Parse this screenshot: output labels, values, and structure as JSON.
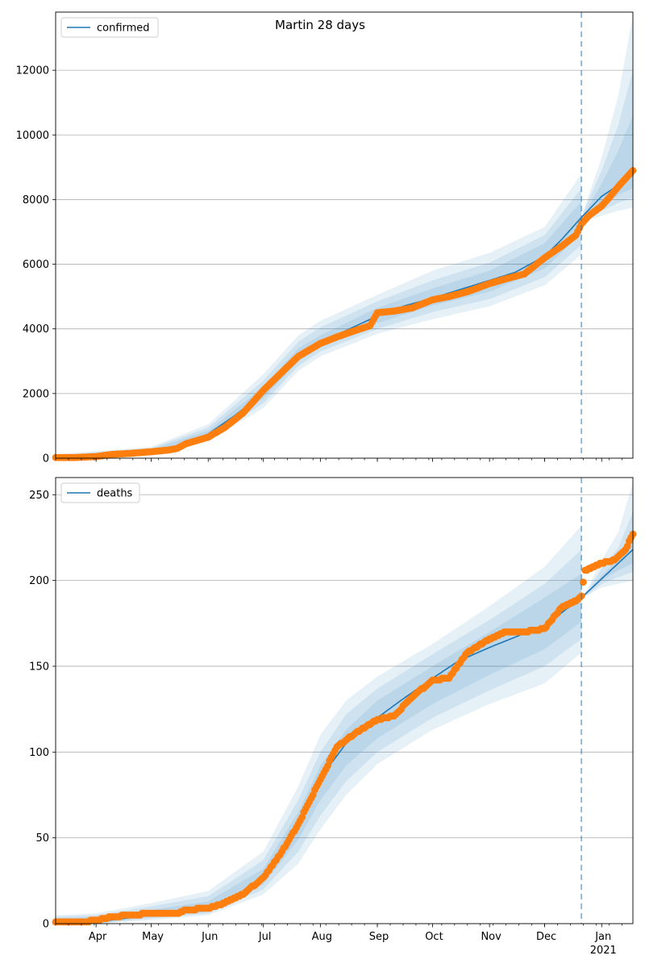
{
  "title": "Martin 28 days",
  "colors": {
    "model": "#1f77b4",
    "observed": "#ff7f0e",
    "band": "#1f77b4",
    "forecast_marker": "#1f77b4",
    "grid": "#b0b0b0"
  },
  "x_axis": {
    "date_range": [
      "2020-03-10",
      "2021-01-18"
    ],
    "month_ticks": [
      {
        "date": "2020-04-01",
        "label": "Apr"
      },
      {
        "date": "2020-05-01",
        "label": "May"
      },
      {
        "date": "2020-06-01",
        "label": "Jun"
      },
      {
        "date": "2020-07-01",
        "label": "Jul"
      },
      {
        "date": "2020-08-01",
        "label": "Aug"
      },
      {
        "date": "2020-09-01",
        "label": "Sep"
      },
      {
        "date": "2020-10-01",
        "label": "Oct"
      },
      {
        "date": "2020-11-01",
        "label": "Nov"
      },
      {
        "date": "2020-12-01",
        "label": "Dec"
      },
      {
        "date": "2021-01-01",
        "label": "Jan"
      }
    ],
    "year_label": "2021",
    "forecast_start": "2020-12-21"
  },
  "chart_data": [
    {
      "type": "line",
      "legend": "confirmed",
      "legend_position": "upper-left",
      "grid": "y",
      "ylim": [
        0,
        13800
      ],
      "yticks": [
        0,
        2000,
        4000,
        6000,
        8000,
        10000,
        12000
      ],
      "model_line": {
        "x": [
          "2020-03-10",
          "2020-04-01",
          "2020-05-01",
          "2020-05-20",
          "2020-06-01",
          "2020-06-15",
          "2020-07-01",
          "2020-07-10",
          "2020-07-20",
          "2020-08-01",
          "2020-08-15",
          "2020-09-01",
          "2020-09-15",
          "2020-10-01",
          "2020-10-15",
          "2020-11-01",
          "2020-11-15",
          "2020-12-01",
          "2020-12-10",
          "2020-12-21",
          "2021-01-01",
          "2021-01-18"
        ],
        "y": [
          0,
          60,
          220,
          400,
          750,
          1300,
          2000,
          2700,
          3200,
          3600,
          3950,
          4400,
          4700,
          4950,
          5200,
          5500,
          5750,
          6250,
          6750,
          7450,
          8100,
          8750
        ]
      },
      "bands": [
        {
          "level": "outer",
          "x": [
            "2020-03-10",
            "2020-05-01",
            "2020-06-01",
            "2020-07-01",
            "2020-07-20",
            "2020-08-01",
            "2020-09-01",
            "2020-10-01",
            "2020-11-01",
            "2020-12-01",
            "2020-12-21",
            "2020-12-22",
            "2021-01-01",
            "2021-01-10",
            "2021-01-18"
          ],
          "low": [
            0,
            150,
            550,
            1550,
            2700,
            3150,
            3850,
            4300,
            4700,
            5350,
            6300,
            7300,
            7500,
            7650,
            7750
          ],
          "high": [
            120,
            350,
            1050,
            2600,
            3800,
            4250,
            5050,
            5800,
            6350,
            7150,
            8800,
            7650,
            9300,
            11200,
            13700
          ]
        },
        {
          "level": "middle",
          "x": [
            "2020-03-10",
            "2020-05-01",
            "2020-06-01",
            "2020-07-01",
            "2020-07-20",
            "2020-08-01",
            "2020-09-01",
            "2020-10-01",
            "2020-11-01",
            "2020-12-01",
            "2020-12-21",
            "2020-12-22",
            "2021-01-01",
            "2021-01-10",
            "2021-01-18"
          ],
          "low": [
            0,
            170,
            610,
            1700,
            2850,
            3300,
            4000,
            4520,
            4920,
            5600,
            6600,
            7350,
            7650,
            7900,
            8050
          ],
          "high": [
            90,
            310,
            950,
            2400,
            3600,
            4050,
            4850,
            5500,
            6050,
            6900,
            8350,
            7600,
            8900,
            10300,
            12000
          ]
        },
        {
          "level": "inner",
          "x": [
            "2020-03-10",
            "2020-05-01",
            "2020-06-01",
            "2020-07-01",
            "2020-07-20",
            "2020-08-01",
            "2020-09-01",
            "2020-10-01",
            "2020-11-01",
            "2020-12-01",
            "2020-12-21",
            "2020-12-22",
            "2021-01-01",
            "2021-01-10",
            "2021-01-18"
          ],
          "low": [
            0,
            190,
            670,
            1850,
            3000,
            3450,
            4180,
            4720,
            5150,
            5870,
            6950,
            7400,
            7800,
            8150,
            8350
          ],
          "high": [
            60,
            270,
            850,
            2200,
            3400,
            3800,
            4650,
            5250,
            5800,
            6650,
            7950,
            7500,
            8500,
            9500,
            10600
          ]
        }
      ],
      "observed": {
        "x": [
          "2020-03-10",
          "2020-03-20",
          "2020-04-01",
          "2020-04-10",
          "2020-04-20",
          "2020-05-01",
          "2020-05-10",
          "2020-05-15",
          "2020-05-20",
          "2020-06-01",
          "2020-06-10",
          "2020-06-20",
          "2020-07-01",
          "2020-07-10",
          "2020-07-20",
          "2020-08-01",
          "2020-08-10",
          "2020-08-20",
          "2020-08-28",
          "2020-09-01",
          "2020-09-10",
          "2020-09-20",
          "2020-10-01",
          "2020-10-10",
          "2020-10-20",
          "2020-11-01",
          "2020-11-10",
          "2020-11-20",
          "2020-12-01",
          "2020-12-10",
          "2020-12-18",
          "2020-12-21",
          "2020-12-25",
          "2021-01-01",
          "2021-01-05",
          "2021-01-10",
          "2021-01-14",
          "2021-01-18"
        ],
        "y": [
          20,
          20,
          50,
          120,
          150,
          200,
          250,
          300,
          450,
          650,
          950,
          1400,
          2100,
          2600,
          3150,
          3550,
          3750,
          3950,
          4100,
          4500,
          4550,
          4650,
          4900,
          5000,
          5150,
          5400,
          5550,
          5700,
          6200,
          6550,
          6900,
          7250,
          7500,
          7800,
          8050,
          8400,
          8650,
          8900
        ]
      }
    },
    {
      "type": "line",
      "legend": "deaths",
      "legend_position": "upper-left",
      "grid": "y",
      "ylim": [
        0,
        260
      ],
      "yticks": [
        0,
        50,
        100,
        150,
        200,
        250
      ],
      "model_line": {
        "x": [
          "2020-03-10",
          "2020-04-01",
          "2020-05-01",
          "2020-05-20",
          "2020-06-01",
          "2020-06-15",
          "2020-07-01",
          "2020-07-10",
          "2020-07-20",
          "2020-08-01",
          "2020-08-15",
          "2020-09-01",
          "2020-09-15",
          "2020-10-01",
          "2020-10-15",
          "2020-11-01",
          "2020-11-15",
          "2020-12-01",
          "2020-12-10",
          "2020-12-21",
          "2021-01-01",
          "2021-01-10",
          "2021-01-18"
        ],
        "y": [
          0,
          1,
          5,
          7,
          9,
          14,
          28,
          40,
          60,
          85,
          105,
          120,
          131,
          143,
          153,
          161,
          167,
          174,
          181,
          190,
          201,
          210,
          218
        ]
      },
      "bands": [
        {
          "level": "outer",
          "x": [
            "2020-03-10",
            "2020-04-01",
            "2020-05-01",
            "2020-06-01",
            "2020-07-01",
            "2020-07-20",
            "2020-08-01",
            "2020-08-15",
            "2020-09-01",
            "2020-10-01",
            "2020-11-01",
            "2020-12-01",
            "2020-12-21",
            "2020-12-22",
            "2021-01-01",
            "2021-01-10",
            "2021-01-18"
          ],
          "low": [
            0,
            0,
            2,
            5,
            17,
            35,
            55,
            75,
            93,
            113,
            128,
            140,
            158,
            190,
            196,
            198,
            200
          ],
          "high": [
            5,
            6,
            12,
            19,
            42,
            80,
            110,
            130,
            144,
            163,
            185,
            208,
            232,
            190,
            212,
            228,
            257
          ]
        },
        {
          "level": "middle",
          "x": [
            "2020-03-10",
            "2020-04-01",
            "2020-05-01",
            "2020-06-01",
            "2020-07-01",
            "2020-07-20",
            "2020-08-01",
            "2020-08-15",
            "2020-09-01",
            "2020-10-01",
            "2020-11-01",
            "2020-12-01",
            "2020-12-21",
            "2020-12-22",
            "2021-01-01",
            "2021-01-10",
            "2021-01-18"
          ],
          "low": [
            0,
            0,
            3,
            6,
            20,
            42,
            63,
            83,
            100,
            120,
            136,
            150,
            166,
            190,
            198,
            202,
            205
          ],
          "high": [
            4,
            5,
            10,
            16,
            37,
            72,
            100,
            122,
            137,
            157,
            177,
            198,
            218,
            190,
            207,
            219,
            240
          ]
        },
        {
          "level": "inner",
          "x": [
            "2020-03-10",
            "2020-04-01",
            "2020-05-01",
            "2020-06-01",
            "2020-07-01",
            "2020-07-20",
            "2020-08-01",
            "2020-08-15",
            "2020-09-01",
            "2020-10-01",
            "2020-11-01",
            "2020-12-01",
            "2020-12-21",
            "2020-12-22",
            "2021-01-01",
            "2021-01-10",
            "2021-01-18"
          ],
          "low": [
            0,
            0,
            4,
            7,
            23,
            49,
            72,
            92,
            108,
            128,
            145,
            160,
            176,
            190,
            200,
            206,
            210
          ],
          "high": [
            3,
            4,
            8,
            13,
            32,
            65,
            92,
            113,
            130,
            150,
            170,
            190,
            204,
            190,
            203,
            212,
            228
          ]
        }
      ],
      "observed": {
        "x": [
          "2020-03-10",
          "2020-03-25",
          "2020-04-01",
          "2020-04-10",
          "2020-04-20",
          "2020-05-01",
          "2020-05-15",
          "2020-05-20",
          "2020-06-01",
          "2020-06-10",
          "2020-06-20",
          "2020-07-01",
          "2020-07-10",
          "2020-07-20",
          "2020-08-01",
          "2020-08-10",
          "2020-08-20",
          "2020-09-01",
          "2020-09-10",
          "2020-09-20",
          "2020-10-01",
          "2020-10-10",
          "2020-10-20",
          "2020-11-01",
          "2020-11-10",
          "2020-11-20",
          "2020-12-01",
          "2020-12-10",
          "2020-12-18",
          "2020-12-21",
          "2020-12-23",
          "2021-01-01",
          "2021-01-08",
          "2021-01-14",
          "2021-01-18"
        ],
        "y": [
          1,
          1,
          2,
          4,
          5,
          6,
          6,
          8,
          9,
          12,
          17,
          27,
          40,
          58,
          84,
          103,
          111,
          119,
          121,
          132,
          142,
          143,
          158,
          166,
          170,
          170,
          172,
          184,
          188,
          191,
          206,
          210,
          212,
          218,
          227
        ]
      }
    }
  ]
}
